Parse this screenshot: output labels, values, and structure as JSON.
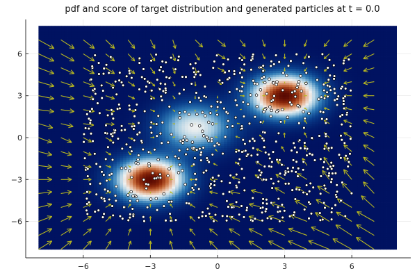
{
  "chart_data": {
    "type": "heatmap",
    "title": "pdf and score of target distribution and generated particles at t = 0.0",
    "xlabel": "",
    "ylabel": "",
    "xlim": [
      -8.6,
      8.6
    ],
    "ylim": [
      -8.6,
      8.4
    ],
    "heatmap_range": [
      -8,
      8
    ],
    "xticks": [
      -6,
      -3,
      0,
      3,
      6
    ],
    "yticks": [
      -6,
      -3,
      0,
      3,
      6
    ],
    "xtick_labels": [
      "−6",
      "−3",
      "0",
      "3",
      "6"
    ],
    "ytick_labels": [
      "−6",
      "−3",
      "0",
      "3",
      "6"
    ],
    "grid": true,
    "pdf_components": [
      {
        "mean": [
          3,
          3
        ],
        "std": 1.0,
        "weight": 1.0
      },
      {
        "mean": [
          -3,
          -3
        ],
        "std": 1.0,
        "weight": 1.0
      },
      {
        "mean": [
          -1,
          0.75
        ],
        "std": 1.1,
        "weight": 0.5
      }
    ],
    "colormap": [
      "#001261",
      "#0a3f8c",
      "#2f7bb6",
      "#9fc8df",
      "#eef0f0",
      "#e6b596",
      "#c46a3a",
      "#8e2a0c",
      "#5a0a02"
    ],
    "quiver": {
      "grid_min": -8,
      "grid_max": 7,
      "step": 1,
      "color": "#b8b820",
      "scale": 0.12,
      "max_length": 1.6
    },
    "particles": {
      "distribution": "uniform",
      "count": 720,
      "range": [
        -6,
        6
      ],
      "fill": "#ffffff",
      "stroke": "#000000"
    }
  }
}
